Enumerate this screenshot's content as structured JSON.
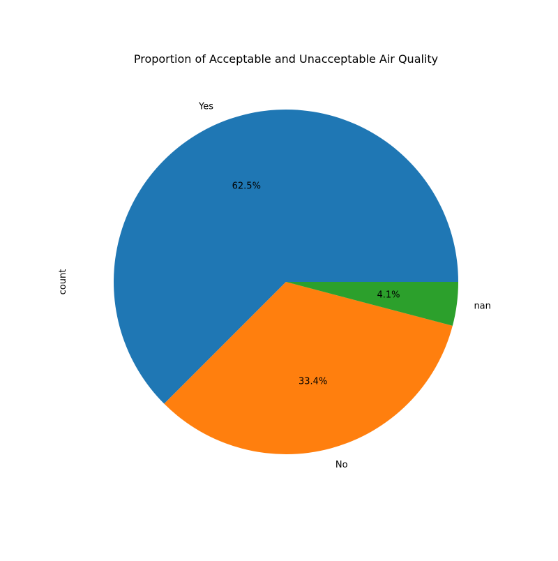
{
  "chart_data": {
    "type": "pie",
    "title": "Proportion of Acceptable and Unacceptable Air Quality",
    "ylabel": "count",
    "labels": [
      "Yes",
      "No",
      "nan"
    ],
    "values": [
      62.5,
      33.4,
      4.1
    ],
    "pct_labels": [
      "62.5%",
      "33.4%",
      "4.1%"
    ],
    "colors": [
      "#1f77b4",
      "#ff7f0e",
      "#2ca02c"
    ],
    "start_angle_deg": 0,
    "direction": "counterclockwise"
  }
}
